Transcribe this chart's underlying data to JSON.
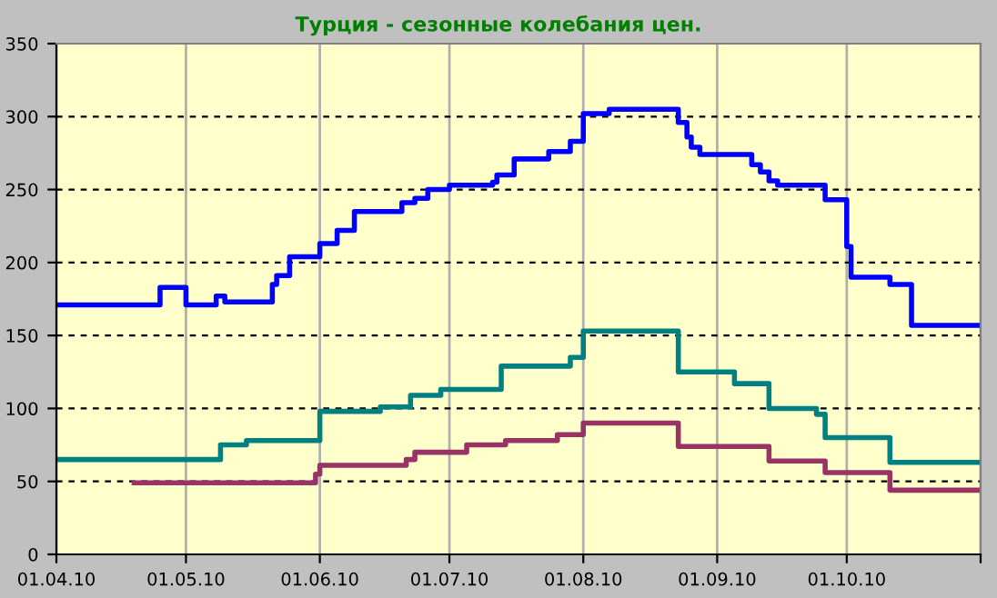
{
  "chart_data": {
    "type": "step",
    "title": "Турция - сезонные колебания цен.",
    "xlim": [
      "2010-04-01",
      "2010-11-01"
    ],
    "xticks": [
      {
        "value": "2010-04-01",
        "label": "01.04.10"
      },
      {
        "value": "2010-05-01",
        "label": "01.05.10"
      },
      {
        "value": "2010-06-01",
        "label": "01.06.10"
      },
      {
        "value": "2010-07-01",
        "label": "01.07.10"
      },
      {
        "value": "2010-08-01",
        "label": "01.08.10"
      },
      {
        "value": "2010-09-01",
        "label": "01.09.10"
      },
      {
        "value": "2010-10-01",
        "label": "01.10.10"
      },
      {
        "value": "2010-11-01",
        "label": null
      }
    ],
    "ylim": [
      0,
      350
    ],
    "yticks": [
      0,
      50,
      100,
      150,
      200,
      250,
      300,
      350
    ],
    "grid": true,
    "line_style": "solid",
    "series": [
      {
        "color": "#0000ff",
        "x": [
          "2010-04-01",
          "2010-04-25",
          "2010-05-01",
          "2010-05-08",
          "2010-05-10",
          "2010-05-21",
          "2010-05-22",
          "2010-05-25",
          "2010-06-01",
          "2010-06-05",
          "2010-06-09",
          "2010-06-20",
          "2010-06-23",
          "2010-06-26",
          "2010-07-01",
          "2010-07-11",
          "2010-07-12",
          "2010-07-16",
          "2010-07-24",
          "2010-07-29",
          "2010-08-01",
          "2010-08-07",
          "2010-08-23",
          "2010-08-25",
          "2010-08-26",
          "2010-08-28",
          "2010-09-09",
          "2010-09-11",
          "2010-09-13",
          "2010-09-15",
          "2010-09-26",
          "2010-10-01",
          "2010-10-02",
          "2010-10-11",
          "2010-10-16",
          "2010-11-01"
        ],
        "values": [
          171,
          183,
          171,
          177,
          173,
          185,
          191,
          204,
          213,
          222,
          235,
          241,
          244,
          250,
          253,
          255,
          260,
          271,
          276,
          283,
          302,
          305,
          296,
          286,
          279,
          274,
          267,
          262,
          256,
          253,
          243,
          211,
          190,
          185,
          157,
          157
        ]
      },
      {
        "color": "#008080",
        "x": [
          "2010-04-01",
          "2010-05-09",
          "2010-05-15",
          "2010-06-01",
          "2010-06-15",
          "2010-06-22",
          "2010-06-29",
          "2010-07-13",
          "2010-07-29",
          "2010-08-01",
          "2010-08-23",
          "2010-09-05",
          "2010-09-13",
          "2010-09-24",
          "2010-09-26",
          "2010-10-11",
          "2010-11-01"
        ],
        "values": [
          65,
          75,
          78,
          98,
          101,
          109,
          113,
          129,
          135,
          153,
          125,
          117,
          100,
          96,
          80,
          63,
          63
        ]
      },
      {
        "color": "#993366",
        "x": [
          "2010-04-19",
          "2010-05-31",
          "2010-06-01",
          "2010-06-21",
          "2010-06-23",
          "2010-07-05",
          "2010-07-14",
          "2010-07-26",
          "2010-08-01",
          "2010-08-23",
          "2010-09-13",
          "2010-09-26",
          "2010-10-11",
          "2010-11-01"
        ],
        "values": [
          49,
          55,
          61,
          65,
          70,
          75,
          78,
          82,
          90,
          74,
          64,
          56,
          44,
          44
        ]
      }
    ]
  }
}
